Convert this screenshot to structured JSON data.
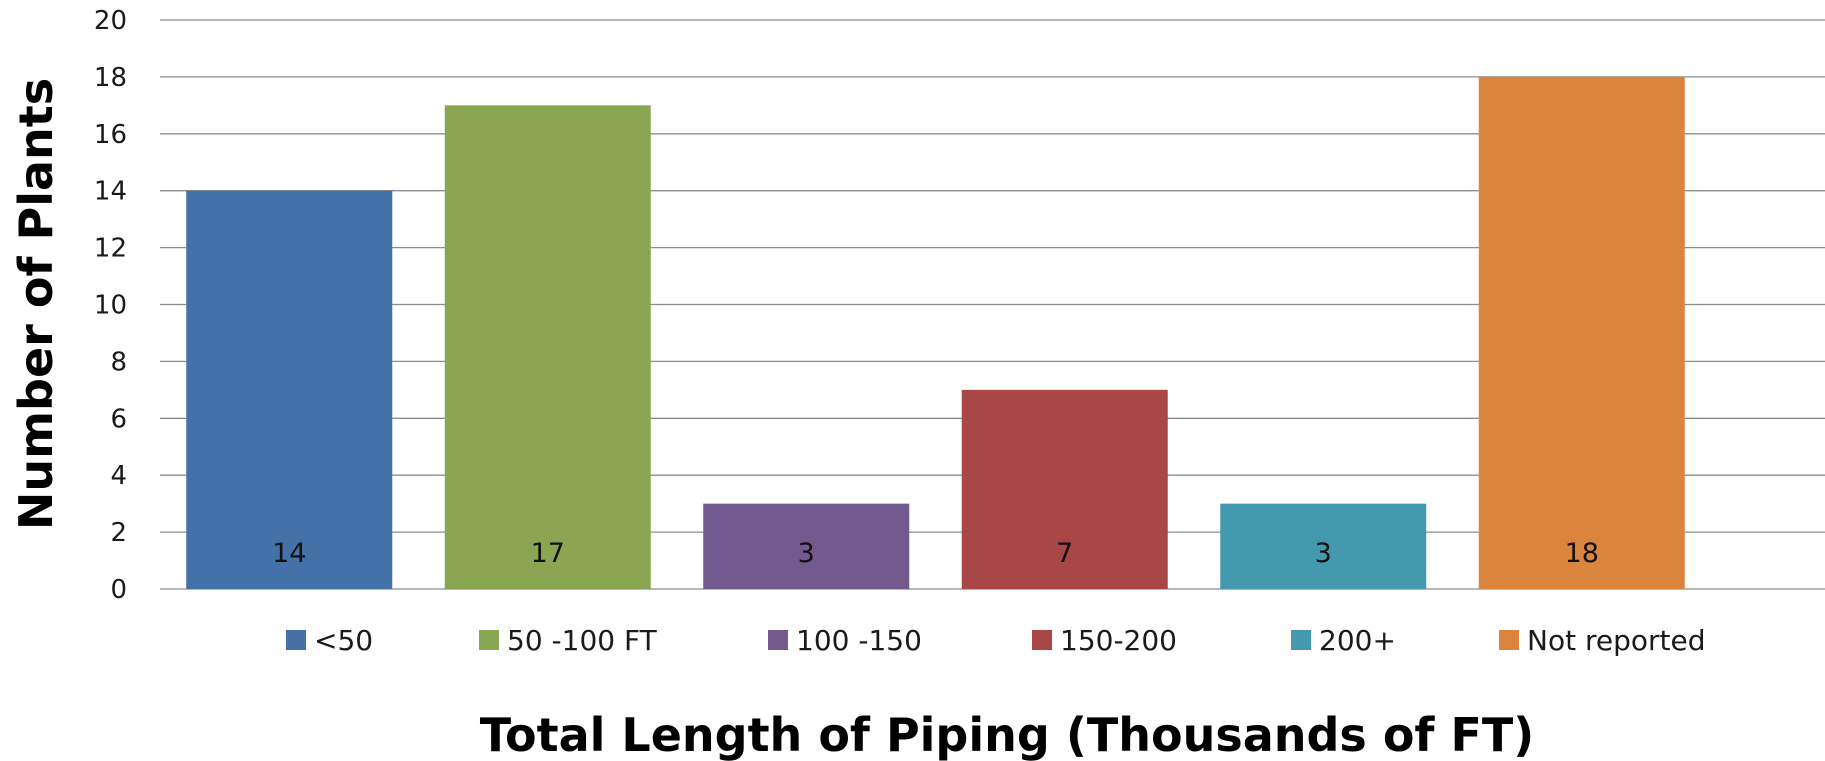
{
  "chart_data": {
    "type": "bar",
    "categories": [
      "<50",
      "50 -100 FT",
      "100 -150",
      "150-200",
      "200+",
      "Not reported"
    ],
    "values": [
      14,
      17,
      3,
      7,
      3,
      18
    ],
    "colors": [
      "#4472a8",
      "#8aa652",
      "#725a8f",
      "#a94746",
      "#4399ae",
      "#db843d"
    ],
    "xlabel": "Total Length  of Piping (Thousands of FT)",
    "ylabel": "Number of Plants",
    "ylim": [
      0,
      20
    ],
    "yticks": [
      0,
      2,
      4,
      6,
      8,
      10,
      12,
      14,
      16,
      18,
      20
    ],
    "grid": true,
    "legend_position": "bottom",
    "data_labels": true
  }
}
